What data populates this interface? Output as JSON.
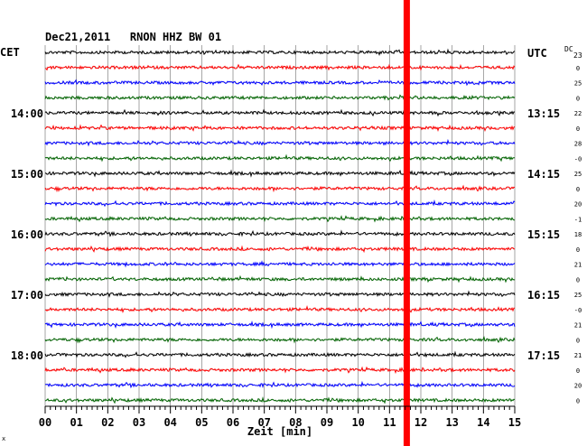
{
  "chart_data": {
    "type": "line",
    "title": "Dec21,2011   RNON HHZ BW 01",
    "left_timezone": "CET",
    "right_timezone": "UTC",
    "dc_header": "DC",
    "xlabel": "Zeit [min]",
    "xlim": [
      0,
      15
    ],
    "x_ticks": [
      "00",
      "01",
      "02",
      "03",
      "04",
      "05",
      "06",
      "07",
      "08",
      "09",
      "10",
      "11",
      "12",
      "13",
      "14",
      "15"
    ],
    "left_hour_labels": [
      {
        "trace_index": 4,
        "label": "14:00"
      },
      {
        "trace_index": 8,
        "label": "15:00"
      },
      {
        "trace_index": 12,
        "label": "16:00"
      },
      {
        "trace_index": 16,
        "label": "17:00"
      },
      {
        "trace_index": 20,
        "label": "18:00"
      }
    ],
    "right_hour_labels": [
      {
        "trace_index": 0,
        "label": "UTC"
      },
      {
        "trace_index": 4,
        "label": "13:15"
      },
      {
        "trace_index": 8,
        "label": "14:15"
      },
      {
        "trace_index": 12,
        "label": "15:15"
      },
      {
        "trace_index": 16,
        "label": "16:15"
      },
      {
        "trace_index": 20,
        "label": "17:15"
      }
    ],
    "dc_offsets": [
      "23",
      "0",
      "25",
      "0",
      "22",
      "0",
      "28",
      "-0",
      "25",
      "0",
      "20",
      "-1",
      "18",
      "0",
      "21",
      "0",
      "25",
      "-0",
      "21",
      "0",
      "21",
      "0",
      "20",
      "0"
    ],
    "trace_colors": [
      "#000000",
      "#ff0000",
      "#0000ff",
      "#006400"
    ],
    "trace_count": 24,
    "grid": true,
    "marker": {
      "x_min": 11.55,
      "color": "#ff0000"
    },
    "footnote": "x"
  }
}
